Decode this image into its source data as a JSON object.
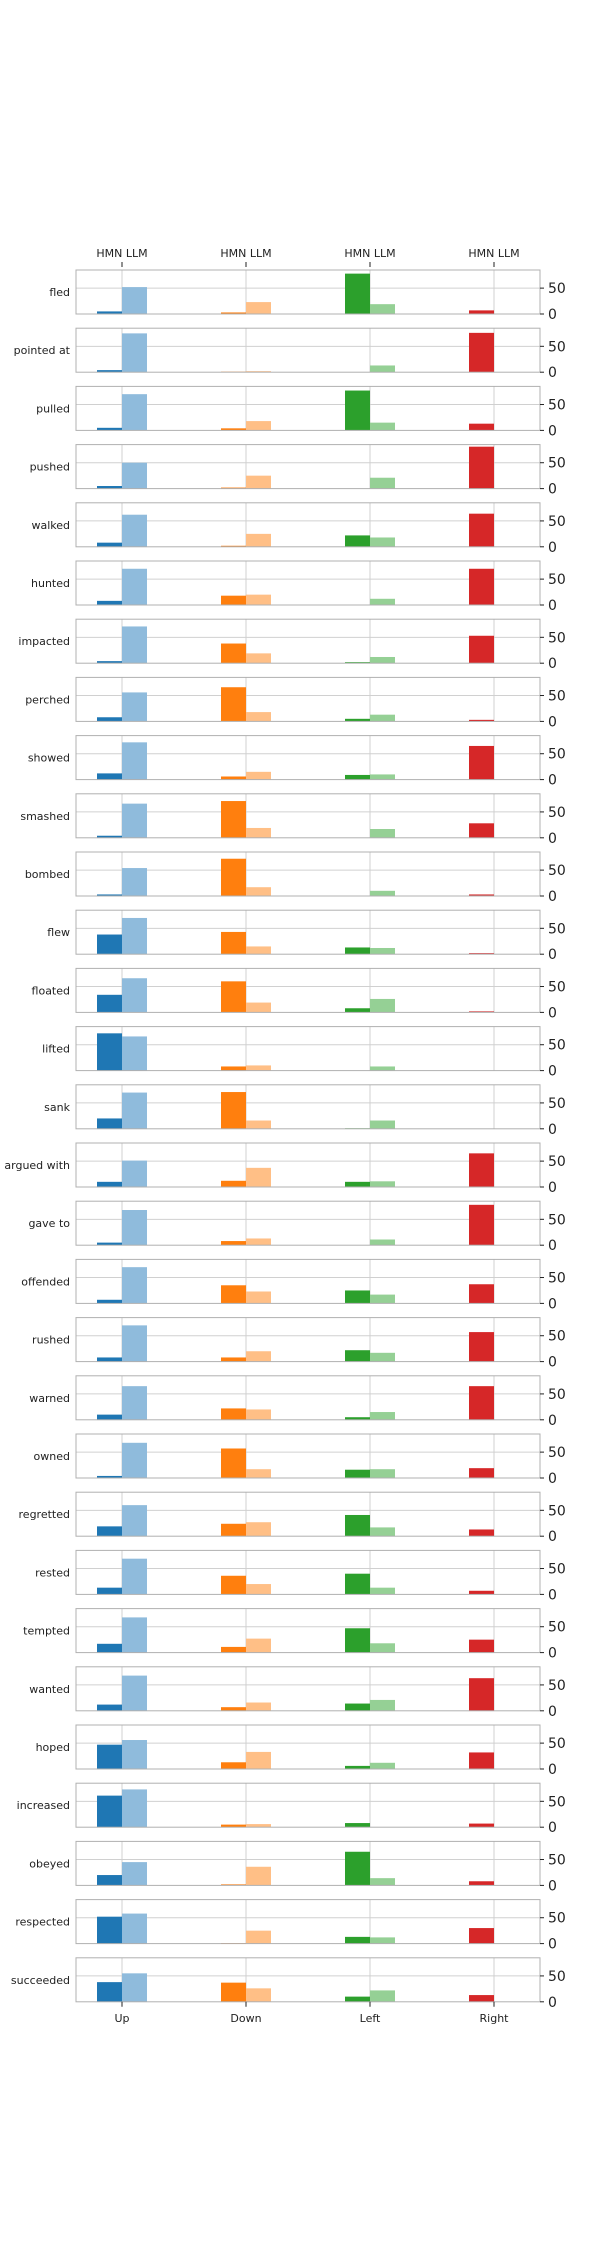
{
  "chart_data": {
    "type": "bar",
    "categories": [
      "Up",
      "Down",
      "Left",
      "Right"
    ],
    "top_labels": [
      "HMN LLM",
      "HMN LLM",
      "HMN LLM",
      "HMN LLM"
    ],
    "series_names": [
      "HMN",
      "LLM"
    ],
    "y_ticks": [
      0,
      50
    ],
    "ylim": [
      0,
      85
    ],
    "colors": {
      "Up": [
        "#1f77b4",
        "#8fbbdc"
      ],
      "Down": [
        "#ff7f0e",
        "#ffbf86"
      ],
      "Left": [
        "#2ca02c",
        "#95d095"
      ],
      "Right": [
        "#d62728",
        "#d62728"
      ]
    },
    "rows": [
      {
        "label": "fled",
        "values": [
          [
            5,
            52
          ],
          [
            3,
            23
          ],
          [
            78,
            19
          ],
          [
            7,
            0
          ]
        ]
      },
      {
        "label": "pointed at",
        "values": [
          [
            4,
            75
          ],
          [
            1,
            2
          ],
          [
            0,
            13
          ],
          [
            76,
            0
          ]
        ]
      },
      {
        "label": "pulled",
        "values": [
          [
            5,
            70
          ],
          [
            4,
            18
          ],
          [
            77,
            15
          ],
          [
            13,
            0
          ]
        ]
      },
      {
        "label": "pushed",
        "values": [
          [
            5,
            50
          ],
          [
            2,
            25
          ],
          [
            0,
            21
          ],
          [
            81,
            0
          ]
        ]
      },
      {
        "label": "walked",
        "values": [
          [
            8,
            62
          ],
          [
            2,
            25
          ],
          [
            22,
            18
          ],
          [
            64,
            0
          ]
        ]
      },
      {
        "label": "hunted",
        "values": [
          [
            8,
            70
          ],
          [
            18,
            20
          ],
          [
            0,
            12
          ],
          [
            70,
            0
          ]
        ]
      },
      {
        "label": "impacted",
        "values": [
          [
            4,
            71
          ],
          [
            38,
            19
          ],
          [
            2,
            12
          ],
          [
            53,
            0
          ]
        ]
      },
      {
        "label": "perched",
        "values": [
          [
            8,
            56
          ],
          [
            66,
            18
          ],
          [
            5,
            13
          ],
          [
            3,
            0
          ]
        ]
      },
      {
        "label": "showed",
        "values": [
          [
            12,
            72
          ],
          [
            6,
            15
          ],
          [
            9,
            10
          ],
          [
            65,
            0
          ]
        ]
      },
      {
        "label": "smashed",
        "values": [
          [
            4,
            66
          ],
          [
            71,
            19
          ],
          [
            0,
            17
          ],
          [
            28,
            0
          ]
        ]
      },
      {
        "label": "bombed",
        "values": [
          [
            3,
            54
          ],
          [
            72,
            17
          ],
          [
            0,
            10
          ],
          [
            3,
            0
          ]
        ]
      },
      {
        "label": "flew",
        "values": [
          [
            38,
            70
          ],
          [
            43,
            15
          ],
          [
            13,
            12
          ],
          [
            2,
            0
          ]
        ]
      },
      {
        "label": "floated",
        "values": [
          [
            34,
            66
          ],
          [
            60,
            19
          ],
          [
            8,
            26
          ],
          [
            2,
            0
          ]
        ]
      },
      {
        "label": "lifted",
        "values": [
          [
            72,
            66
          ],
          [
            8,
            10
          ],
          [
            0,
            8
          ],
          [
            0,
            0
          ]
        ]
      },
      {
        "label": "sank",
        "values": [
          [
            20,
            70
          ],
          [
            71,
            16
          ],
          [
            1,
            16
          ],
          [
            0,
            0
          ]
        ]
      },
      {
        "label": "argued with",
        "values": [
          [
            10,
            51
          ],
          [
            12,
            37
          ],
          [
            10,
            11
          ],
          [
            65,
            0
          ]
        ]
      },
      {
        "label": "gave to",
        "values": [
          [
            5,
            68
          ],
          [
            8,
            13
          ],
          [
            0,
            11
          ],
          [
            78,
            0
          ]
        ]
      },
      {
        "label": "offended",
        "values": [
          [
            7,
            70
          ],
          [
            35,
            23
          ],
          [
            25,
            17
          ],
          [
            37,
            0
          ]
        ]
      },
      {
        "label": "rushed",
        "values": [
          [
            8,
            70
          ],
          [
            8,
            20
          ],
          [
            22,
            17
          ],
          [
            57,
            0
          ]
        ]
      },
      {
        "label": "warned",
        "values": [
          [
            10,
            65
          ],
          [
            22,
            20
          ],
          [
            5,
            15
          ],
          [
            65,
            0
          ]
        ]
      },
      {
        "label": "owned",
        "values": [
          [
            4,
            68
          ],
          [
            57,
            17
          ],
          [
            16,
            17
          ],
          [
            19,
            0
          ]
        ]
      },
      {
        "label": "regretted",
        "values": [
          [
            19,
            60
          ],
          [
            24,
            27
          ],
          [
            41,
            17
          ],
          [
            13,
            0
          ]
        ]
      },
      {
        "label": "rested",
        "values": [
          [
            13,
            69
          ],
          [
            36,
            20
          ],
          [
            40,
            13
          ],
          [
            7,
            0
          ]
        ]
      },
      {
        "label": "tempted",
        "values": [
          [
            17,
            68
          ],
          [
            11,
            27
          ],
          [
            47,
            18
          ],
          [
            25,
            0
          ]
        ]
      },
      {
        "label": "wanted",
        "values": [
          [
            12,
            68
          ],
          [
            7,
            16
          ],
          [
            14,
            21
          ],
          [
            63,
            0
          ]
        ]
      },
      {
        "label": "hoped",
        "values": [
          [
            47,
            56
          ],
          [
            13,
            33
          ],
          [
            6,
            12
          ],
          [
            32,
            0
          ]
        ]
      },
      {
        "label": "increased",
        "values": [
          [
            61,
            73
          ],
          [
            5,
            6
          ],
          [
            8,
            0
          ],
          [
            7,
            0
          ]
        ]
      },
      {
        "label": "obeyed",
        "values": [
          [
            20,
            45
          ],
          [
            2,
            36
          ],
          [
            65,
            14
          ],
          [
            8,
            0
          ]
        ]
      },
      {
        "label": "respected",
        "values": [
          [
            52,
            58
          ],
          [
            1,
            25
          ],
          [
            13,
            12
          ],
          [
            30,
            0
          ]
        ]
      },
      {
        "label": "succeeded",
        "values": [
          [
            38,
            55
          ],
          [
            37,
            26
          ],
          [
            10,
            22
          ],
          [
            13,
            0
          ]
        ]
      }
    ]
  }
}
